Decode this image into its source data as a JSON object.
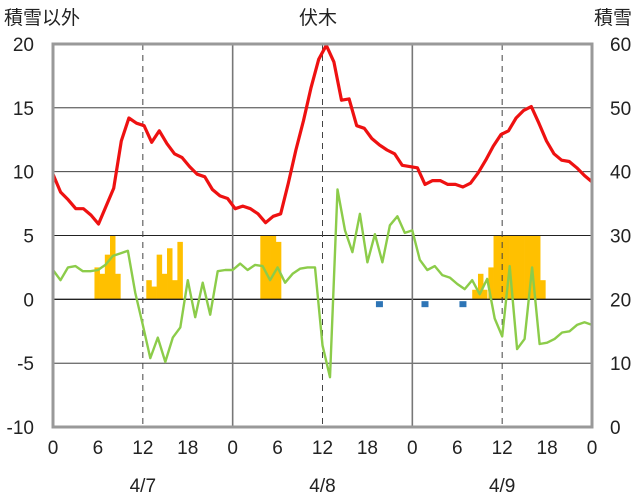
{
  "chart_data": {
    "type": "combo",
    "title": "伏木",
    "left_axis_label": "積雪以外",
    "right_axis_label": "積雪",
    "left_ylim": [
      -10,
      20
    ],
    "left_ticks": [
      "20",
      "15",
      "10",
      "5",
      "0",
      "-5",
      "-10"
    ],
    "right_ylim": [
      0,
      60
    ],
    "right_ticks": [
      "60",
      "50",
      "40",
      "30",
      "20",
      "10",
      "0"
    ],
    "x_hour_ticks": [
      "0",
      "6",
      "12",
      "18",
      "0",
      "6",
      "12",
      "18",
      "0",
      "6",
      "12",
      "18",
      "0"
    ],
    "date_labels": [
      "4/7",
      "4/8",
      "4/9"
    ],
    "colors": {
      "temperature": "#ee1111",
      "wind": "#8ccc4a",
      "snow_bars": "#ffc000",
      "markers": "#2e75b6",
      "baseline": "#7030a0",
      "grid": "#777777",
      "frame": "#999999"
    },
    "series": [
      {
        "kind": "line",
        "color_key": "temperature",
        "values": [
          9.8,
          8.4,
          7.8,
          7.1,
          7.1,
          6.6,
          5.9,
          7.3,
          8.7,
          12.4,
          14.2,
          13.8,
          13.6,
          12.3,
          13.2,
          12.2,
          11.4,
          11.1,
          10.4,
          9.8,
          9.6,
          8.6,
          8.1,
          7.9,
          7.1,
          7.3,
          7.1,
          6.7,
          6.0,
          6.5,
          6.7,
          9.1,
          11.7,
          14.0,
          16.6,
          18.8,
          19.9,
          18.6,
          15.6,
          15.7,
          13.6,
          13.4,
          12.6,
          12.1,
          11.7,
          11.4,
          10.5,
          10.4,
          10.3,
          9.0,
          9.3,
          9.3,
          9.0,
          9.0,
          8.8,
          9.1,
          9.9,
          10.9,
          12.0,
          12.9,
          13.2,
          14.2,
          14.8,
          15.1,
          13.8,
          12.4,
          11.4,
          10.9,
          10.8,
          10.3,
          9.7,
          9.2
        ]
      },
      {
        "kind": "line",
        "color_key": "wind",
        "values": [
          2.3,
          1.5,
          2.5,
          2.6,
          2.2,
          2.2,
          2.3,
          2.7,
          3.4,
          3.6,
          3.8,
          0.5,
          -2.0,
          -4.6,
          -3.0,
          -4.9,
          -3.0,
          -2.2,
          1.5,
          -1.4,
          1.3,
          -1.2,
          2.2,
          2.3,
          2.3,
          2.8,
          2.3,
          2.7,
          2.6,
          1.5,
          2.5,
          1.3,
          2.0,
          2.4,
          2.5,
          2.5,
          -3.6,
          -6.1,
          8.6,
          5.4,
          3.7,
          6.7,
          2.9,
          5.1,
          2.9,
          5.8,
          6.5,
          5.2,
          5.4,
          3.1,
          2.3,
          2.6,
          1.9,
          1.7,
          1.2,
          0.8,
          1.5,
          0.4,
          1.6,
          -1.5,
          -2.9,
          2.6,
          -3.9,
          -3.1,
          2.5,
          -3.5,
          -3.4,
          -3.1,
          -2.6,
          -2.5,
          -2.0,
          -1.8,
          -2.0
        ]
      },
      {
        "kind": "bar",
        "color_key": "snow_bars",
        "values": [
          0,
          0,
          0,
          0,
          0,
          0,
          0,
          0,
          25,
          24,
          27,
          30,
          24,
          0,
          0,
          0,
          0,
          0,
          23,
          22,
          27,
          24,
          28,
          23,
          29,
          20,
          0,
          0,
          0,
          0,
          0,
          0,
          0,
          0,
          0,
          0,
          0,
          0,
          0,
          0,
          30,
          30,
          30,
          29,
          20,
          0,
          0,
          0,
          0,
          0,
          0,
          0,
          0,
          0,
          0,
          0,
          0,
          0,
          0,
          0,
          0,
          0,
          0,
          0,
          0,
          0,
          0,
          0,
          0,
          0,
          0,
          0,
          0,
          0,
          0,
          0,
          0,
          0,
          0,
          0,
          0,
          0,
          24,
          20,
          25,
          30,
          30,
          30,
          30,
          30,
          30,
          30,
          30,
          30,
          23,
          0,
          0,
          0,
          0,
          0,
          0,
          0,
          0,
          0
        ]
      },
      {
        "kind": "bar_small",
        "color_key": "snow_bars",
        "values": [
          0,
          0,
          0,
          0,
          0,
          0,
          0,
          0,
          0,
          0,
          0,
          0,
          0,
          0,
          0,
          0,
          0,
          0,
          0,
          0,
          0,
          0,
          0,
          0,
          0,
          0,
          0,
          0,
          0,
          0,
          0,
          0,
          0,
          0,
          0,
          0,
          0,
          0,
          0,
          0,
          0,
          0,
          0,
          0,
          0,
          0,
          0,
          0,
          0,
          0,
          0,
          0,
          0,
          0,
          0,
          0,
          21.5,
          21.5,
          0,
          0,
          0,
          0,
          0,
          0,
          0,
          0,
          0,
          0,
          0,
          0,
          0,
          0
        ]
      },
      {
        "kind": "markers",
        "color_key": "markers",
        "values": [
          [
            43,
            -0.3
          ],
          [
            49,
            -0.3
          ],
          [
            54,
            -0.3
          ]
        ]
      }
    ]
  }
}
